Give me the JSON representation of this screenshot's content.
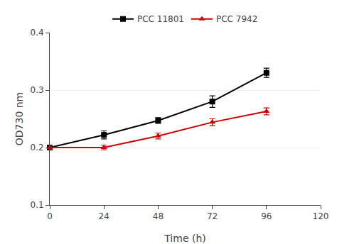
{
  "chart_data": {
    "type": "line",
    "x": [
      0,
      24,
      48,
      72,
      96
    ],
    "series": [
      {
        "name": "PCC 11801",
        "color": "#000000",
        "marker": "square",
        "values": [
          0.2,
          0.222,
          0.247,
          0.28,
          0.33
        ],
        "yerr": [
          0.003,
          0.007,
          0.005,
          0.01,
          0.008
        ]
      },
      {
        "name": "PCC 7942",
        "color": "#cc0000",
        "marker": "triangle-up",
        "values": [
          0.2,
          0.2,
          0.22,
          0.244,
          0.263
        ],
        "yerr": [
          0.003,
          0.004,
          0.005,
          0.006,
          0.006
        ]
      }
    ],
    "xlabel": "Time (h)",
    "ylabel": "OD730 nm",
    "xlim": [
      0,
      120
    ],
    "xticks": [
      0,
      24,
      48,
      72,
      96,
      120
    ],
    "ylim": [
      0.1,
      0.4
    ],
    "yticks": [
      0.1,
      0.2,
      0.3,
      0.4
    ],
    "grid": "y",
    "legend": "top"
  }
}
